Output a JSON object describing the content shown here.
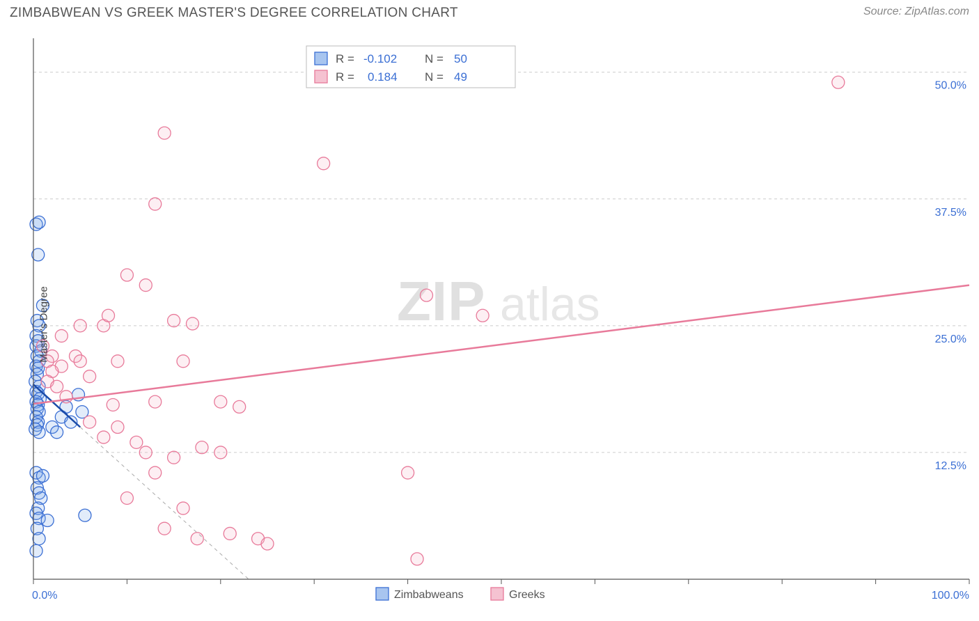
{
  "header": {
    "title": "ZIMBABWEAN VS GREEK MASTER'S DEGREE CORRELATION CHART",
    "source": "Source: ZipAtlas.com"
  },
  "ylabel": "Master's Degree",
  "watermark": {
    "part1": "ZIP",
    "part2": "atlas"
  },
  "chart": {
    "type": "scatter",
    "xlim": [
      0,
      100
    ],
    "ylim": [
      0,
      53
    ],
    "x_ticks_label_left": "0.0%",
    "x_ticks_label_right": "100.0%",
    "x_tick_positions": [
      0,
      10,
      20,
      30,
      40,
      50,
      60,
      70,
      80,
      90,
      100
    ],
    "y_ticks": [
      {
        "v": 12.5,
        "label": "12.5%"
      },
      {
        "v": 25.0,
        "label": "25.0%"
      },
      {
        "v": 37.5,
        "label": "37.5%"
      },
      {
        "v": 50.0,
        "label": "50.0%"
      }
    ],
    "background_color": "#ffffff",
    "grid_color": "#cccccc",
    "marker_radius": 9,
    "marker_stroke_width": 1.3,
    "fill_opacity": 0.22,
    "series": [
      {
        "name": "Zimbabweans",
        "color_stroke": "#3b6fd4",
        "color_fill": "#7da7e8",
        "R": "-0.102",
        "N": "50",
        "trend": {
          "x1": 0,
          "y1": 19.2,
          "x2": 5.0,
          "y2": 15.0
        },
        "trend_dash": {
          "x1": 5.0,
          "y1": 15.0,
          "x2": 23.0,
          "y2": 0.0
        },
        "points": [
          [
            0.3,
            35.0
          ],
          [
            0.6,
            35.2
          ],
          [
            0.5,
            32.0
          ],
          [
            1.0,
            27.0
          ],
          [
            0.4,
            25.5
          ],
          [
            0.6,
            25.0
          ],
          [
            0.3,
            24.0
          ],
          [
            0.5,
            23.5
          ],
          [
            0.3,
            23.0
          ],
          [
            0.8,
            22.5
          ],
          [
            0.4,
            22.0
          ],
          [
            0.6,
            21.5
          ],
          [
            0.3,
            21.0
          ],
          [
            0.5,
            20.8
          ],
          [
            0.4,
            20.2
          ],
          [
            0.2,
            19.5
          ],
          [
            0.6,
            19.0
          ],
          [
            0.3,
            18.5
          ],
          [
            0.5,
            18.3
          ],
          [
            0.7,
            17.8
          ],
          [
            0.3,
            17.5
          ],
          [
            0.5,
            17.2
          ],
          [
            0.4,
            16.8
          ],
          [
            0.6,
            16.5
          ],
          [
            0.3,
            16.0
          ],
          [
            0.5,
            15.5
          ],
          [
            0.4,
            15.2
          ],
          [
            0.2,
            14.8
          ],
          [
            0.6,
            14.5
          ],
          [
            2.0,
            15.0
          ],
          [
            2.5,
            14.5
          ],
          [
            3.0,
            16.0
          ],
          [
            3.5,
            17.0
          ],
          [
            4.0,
            15.5
          ],
          [
            4.8,
            18.2
          ],
          [
            5.2,
            16.5
          ],
          [
            0.3,
            10.5
          ],
          [
            0.6,
            10.0
          ],
          [
            1.0,
            10.2
          ],
          [
            0.4,
            9.0
          ],
          [
            0.6,
            8.5
          ],
          [
            0.8,
            8.0
          ],
          [
            0.5,
            7.0
          ],
          [
            0.3,
            6.5
          ],
          [
            0.6,
            6.0
          ],
          [
            1.5,
            5.8
          ],
          [
            0.4,
            5.0
          ],
          [
            0.6,
            4.0
          ],
          [
            0.3,
            2.8
          ],
          [
            5.5,
            6.3
          ]
        ]
      },
      {
        "name": "Greeks",
        "color_stroke": "#e87a9a",
        "color_fill": "#f5b5c8",
        "R": "0.184",
        "N": "49",
        "trend": {
          "x1": 0,
          "y1": 17.3,
          "x2": 100,
          "y2": 29.0
        },
        "points": [
          [
            1.0,
            23.0
          ],
          [
            2.0,
            22.0
          ],
          [
            1.5,
            21.5
          ],
          [
            3.0,
            21.0
          ],
          [
            2.0,
            20.5
          ],
          [
            4.5,
            22.0
          ],
          [
            1.5,
            19.5
          ],
          [
            2.5,
            19.0
          ],
          [
            3.5,
            18.0
          ],
          [
            5.0,
            21.5
          ],
          [
            6.0,
            20.0
          ],
          [
            7.5,
            25.0
          ],
          [
            8.0,
            26.0
          ],
          [
            9.0,
            21.5
          ],
          [
            10.0,
            30.0
          ],
          [
            12.0,
            29.0
          ],
          [
            13.0,
            17.5
          ],
          [
            15.0,
            25.5
          ],
          [
            16.0,
            21.5
          ],
          [
            17.0,
            25.2
          ],
          [
            14.0,
            44.0
          ],
          [
            13.0,
            37.0
          ],
          [
            31.0,
            41.0
          ],
          [
            20.0,
            17.5
          ],
          [
            22.0,
            17.0
          ],
          [
            6.0,
            15.5
          ],
          [
            7.5,
            14.0
          ],
          [
            9.0,
            15.0
          ],
          [
            8.5,
            17.2
          ],
          [
            10.0,
            8.0
          ],
          [
            11.0,
            13.5
          ],
          [
            12.0,
            12.5
          ],
          [
            13.0,
            10.5
          ],
          [
            14.0,
            5.0
          ],
          [
            15.0,
            12.0
          ],
          [
            16.0,
            7.0
          ],
          [
            17.5,
            4.0
          ],
          [
            18.0,
            13.0
          ],
          [
            21.0,
            4.5
          ],
          [
            20.0,
            12.5
          ],
          [
            24.0,
            4.0
          ],
          [
            25.0,
            3.5
          ],
          [
            40.0,
            10.5
          ],
          [
            41.0,
            2.0
          ],
          [
            42.0,
            28.0
          ],
          [
            48.0,
            26.0
          ],
          [
            86.0,
            49.0
          ],
          [
            5.0,
            25.0
          ],
          [
            3.0,
            24.0
          ]
        ]
      }
    ]
  },
  "stats_legend": {
    "r_label": "R =",
    "n_label": "N ="
  },
  "bottom_legend": {
    "items": [
      {
        "label": "Zimbabweans",
        "fill": "#a8c5ef",
        "stroke": "#3b6fd4"
      },
      {
        "label": "Greeks",
        "fill": "#f5c2d1",
        "stroke": "#e87a9a"
      }
    ]
  }
}
